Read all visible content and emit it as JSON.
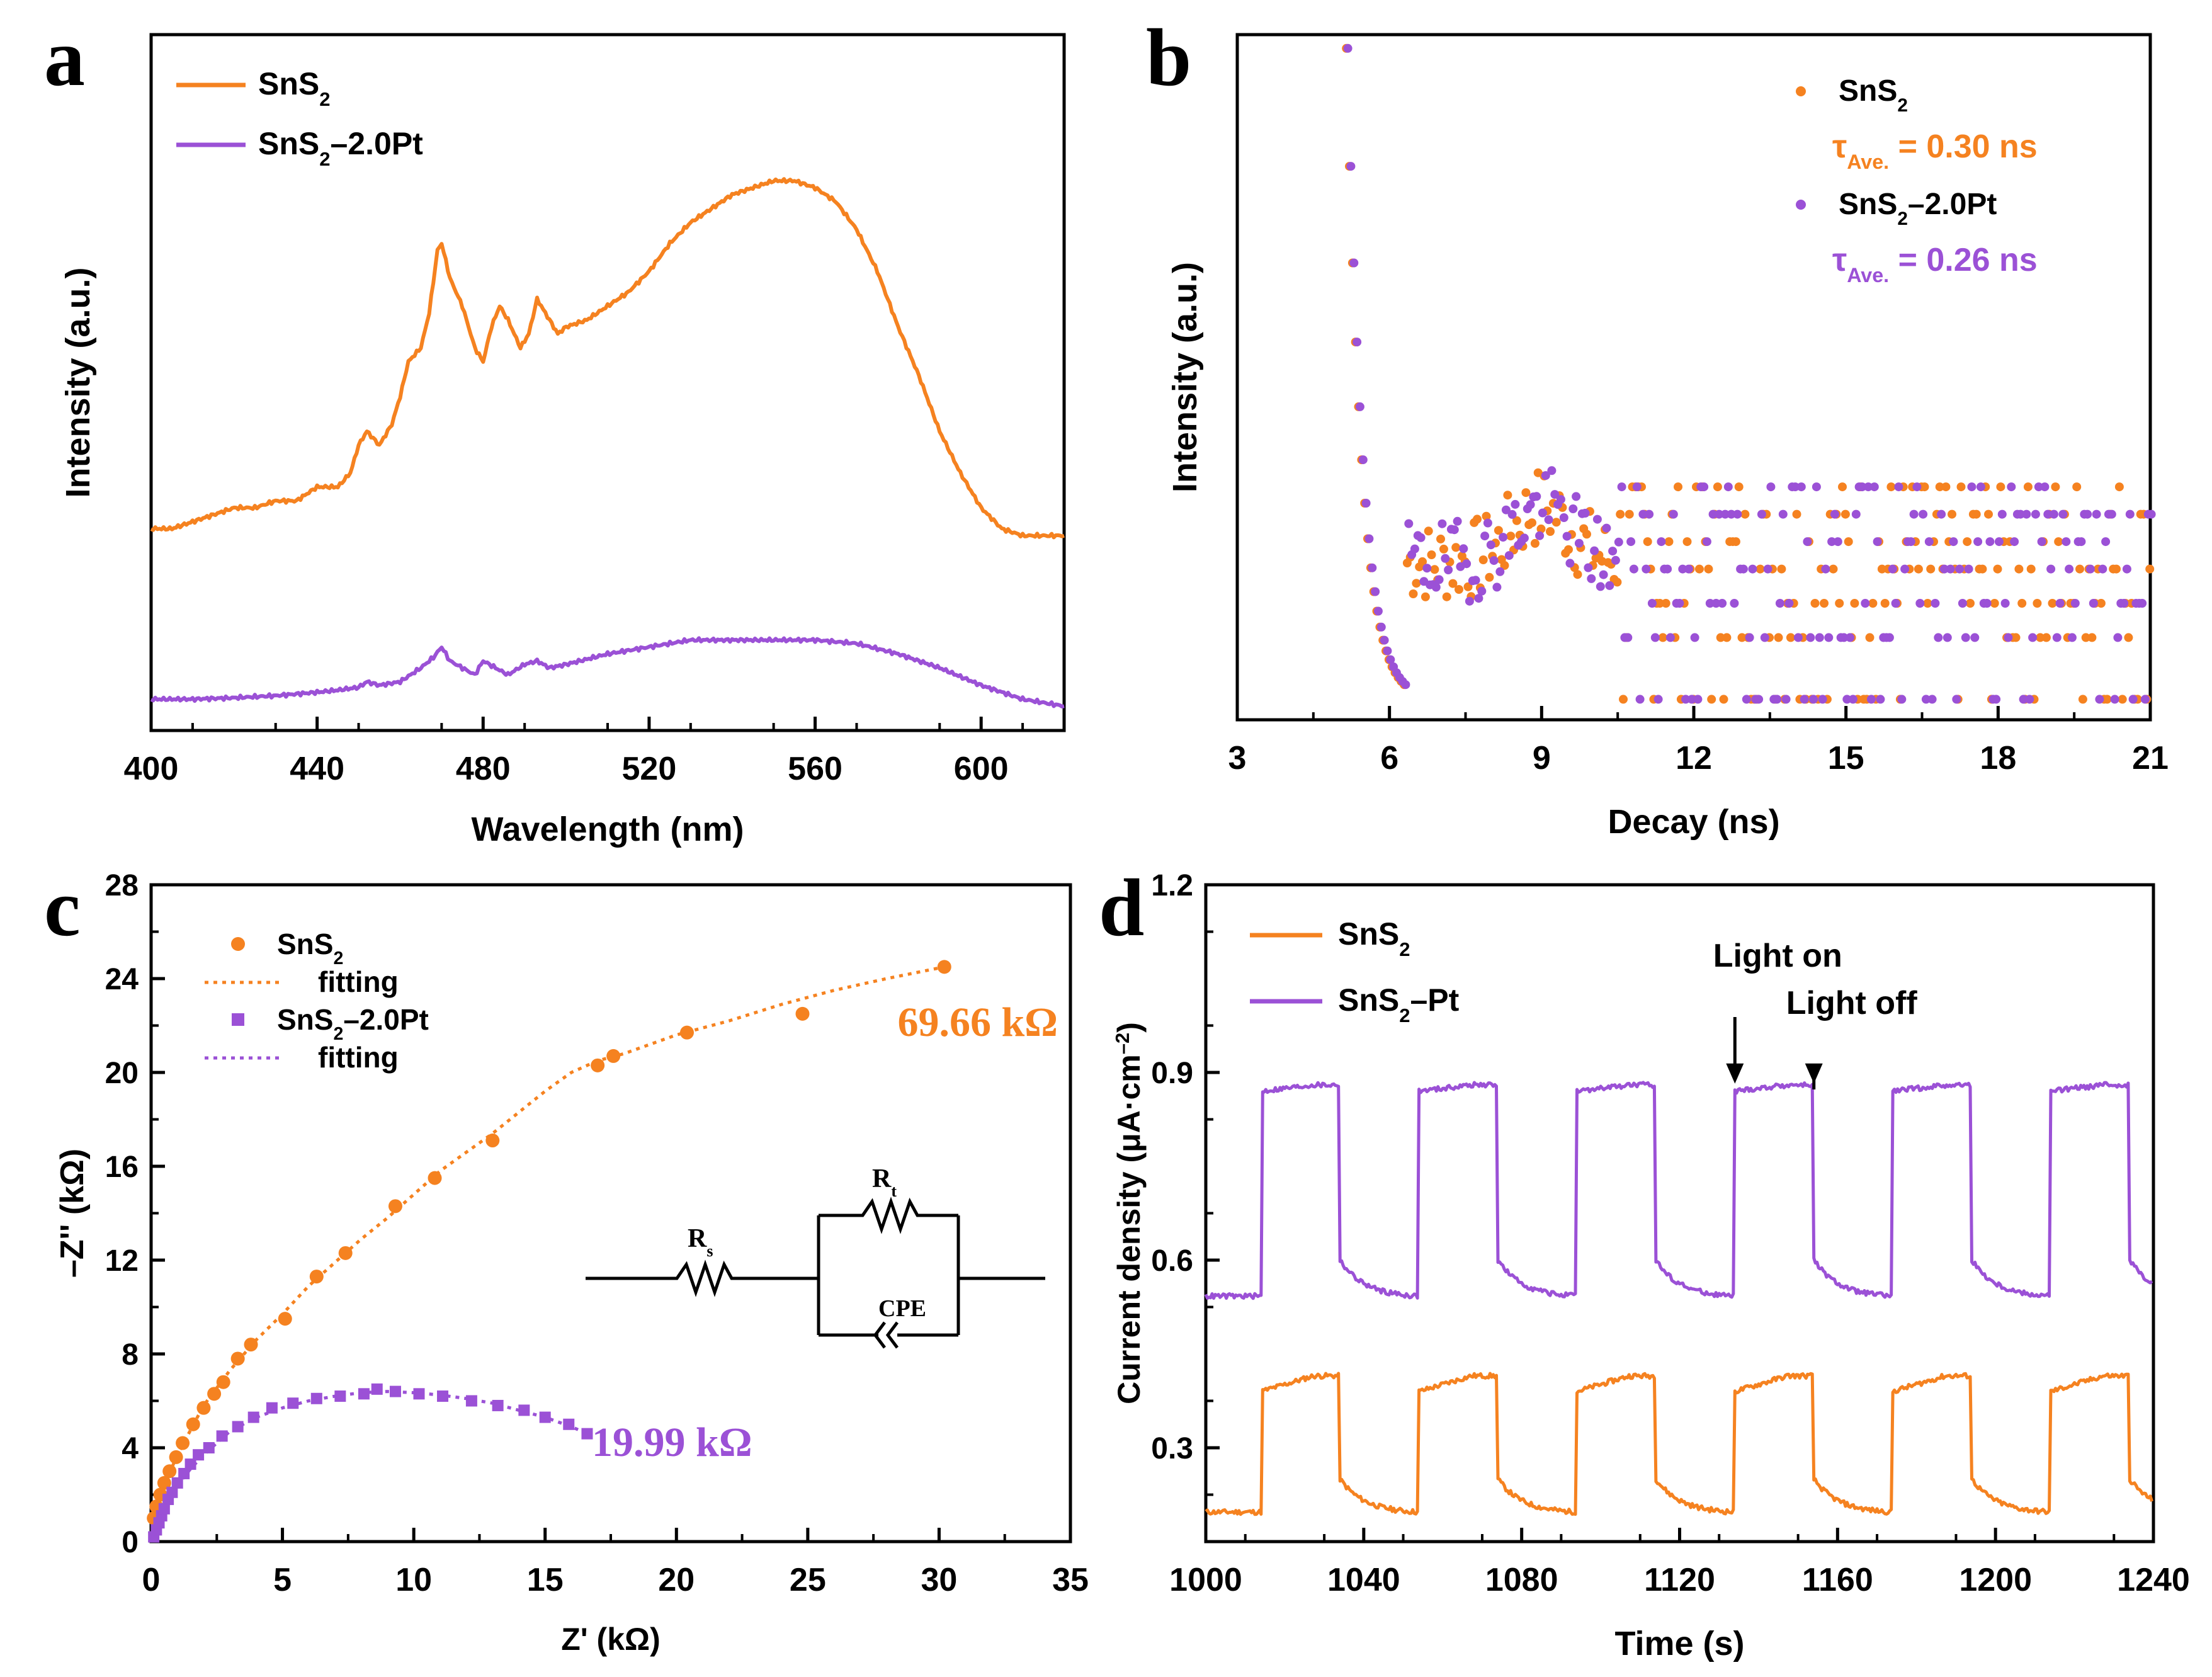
{
  "colors": {
    "orange": "#F58220",
    "purple": "#9B51D6",
    "axis": "#000000"
  },
  "chart_data": [
    {
      "id": "a",
      "panel_label": "a",
      "type": "line",
      "xlabel": "Wavelength (nm)",
      "ylabel": "Intensity (a.u.)",
      "xlim": [
        400,
        620
      ],
      "ylim": [
        0,
        1
      ],
      "xticks": [
        400,
        440,
        480,
        520,
        560,
        600
      ],
      "yticks": [],
      "legend": "top-left",
      "series": [
        {
          "name": "SnS2",
          "label_main": "SnS",
          "label_sub": "2",
          "label_tail": "",
          "color": "#F58220",
          "x": [
            400,
            405,
            410,
            415,
            420,
            425,
            430,
            435,
            440,
            445,
            448,
            450,
            452,
            455,
            458,
            460,
            462,
            465,
            467,
            469,
            470,
            472,
            475,
            478,
            480,
            482,
            484,
            486,
            489,
            491,
            493,
            495,
            498,
            500,
            505,
            510,
            515,
            520,
            525,
            530,
            535,
            540,
            545,
            550,
            555,
            560,
            565,
            570,
            575,
            580,
            585,
            590,
            595,
            600,
            605,
            610,
            615,
            620
          ],
          "y": [
            0.29,
            0.29,
            0.3,
            0.31,
            0.32,
            0.32,
            0.33,
            0.33,
            0.35,
            0.35,
            0.37,
            0.41,
            0.43,
            0.41,
            0.44,
            0.48,
            0.53,
            0.55,
            0.6,
            0.69,
            0.7,
            0.65,
            0.61,
            0.55,
            0.53,
            0.58,
            0.61,
            0.59,
            0.55,
            0.57,
            0.62,
            0.6,
            0.57,
            0.58,
            0.59,
            0.61,
            0.63,
            0.66,
            0.7,
            0.73,
            0.75,
            0.77,
            0.78,
            0.79,
            0.79,
            0.78,
            0.76,
            0.72,
            0.66,
            0.58,
            0.51,
            0.43,
            0.37,
            0.32,
            0.29,
            0.28,
            0.28,
            0.28
          ]
        },
        {
          "name": "SnS2–2.0Pt",
          "label_main": "SnS",
          "label_sub": "2",
          "label_tail": "–2.0Pt",
          "color": "#9B51D6",
          "x": [
            400,
            410,
            420,
            430,
            440,
            445,
            450,
            452,
            455,
            460,
            465,
            468,
            470,
            472,
            475,
            478,
            480,
            483,
            486,
            490,
            493,
            496,
            500,
            510,
            520,
            530,
            540,
            550,
            560,
            570,
            580,
            590,
            600,
            610,
            620
          ],
          "y": [
            0.045,
            0.045,
            0.047,
            0.05,
            0.055,
            0.058,
            0.062,
            0.07,
            0.065,
            0.07,
            0.09,
            0.105,
            0.12,
            0.1,
            0.09,
            0.08,
            0.1,
            0.09,
            0.08,
            0.095,
            0.1,
            0.09,
            0.095,
            0.11,
            0.12,
            0.13,
            0.13,
            0.13,
            0.13,
            0.125,
            0.11,
            0.09,
            0.065,
            0.045,
            0.035
          ]
        }
      ]
    },
    {
      "id": "b",
      "panel_label": "b",
      "type": "scatter",
      "xlabel": "Decay (ns)",
      "ylabel": "Intensity (a.u.)",
      "xlim": [
        3,
        21
      ],
      "ylim": [
        0,
        1
      ],
      "xticks": [
        3,
        6,
        9,
        12,
        15,
        18,
        21
      ],
      "yticks": [],
      "legend": "top-right",
      "annotations": [
        {
          "series": 0,
          "tau_symbol": "τ",
          "tau_sub": "Ave.",
          "tau_value": "= 0.30 ns"
        },
        {
          "series": 1,
          "tau_symbol": "τ",
          "tau_sub": "Ave.",
          "tau_value": "= 0.26 ns"
        }
      ],
      "series": [
        {
          "name": "SnS2",
          "label_main": "SnS",
          "label_sub": "2",
          "label_tail": "",
          "color": "#F58220",
          "seed": 7
        },
        {
          "name": "SnS2–2.0Pt",
          "label_main": "SnS",
          "label_sub": "2",
          "label_tail": "–2.0Pt",
          "color": "#9B51D6",
          "seed": 19
        }
      ],
      "decay_model": {
        "t0": 5.15,
        "tau": 0.3,
        "plateau": 0.3,
        "noise_levels": [
          0.03,
          0.12,
          0.17,
          0.22,
          0.26,
          0.3,
          0.34
        ]
      }
    },
    {
      "id": "c",
      "panel_label": "c",
      "type": "scatter",
      "xlabel": "Z' (kΩ)",
      "ylabel": "–Z'' (kΩ)",
      "xlim": [
        0,
        35
      ],
      "ylim": [
        0,
        28
      ],
      "xticks": [
        0,
        5,
        10,
        15,
        20,
        25,
        30,
        35
      ],
      "yticks": [
        0,
        4,
        8,
        12,
        16,
        20,
        24,
        28
      ],
      "legend": "top-left",
      "series": [
        {
          "name": "SnS2",
          "label_main": "SnS",
          "label_sub": "2",
          "label_tail": "",
          "marker": "circle",
          "color": "#F58220",
          "x": [
            0.1,
            0.2,
            0.35,
            0.5,
            0.7,
            0.95,
            1.2,
            1.6,
            2.0,
            2.4,
            2.75,
            3.3,
            3.8,
            5.1,
            6.3,
            7.4,
            9.3,
            10.8,
            13.0,
            17.0,
            17.6,
            20.4,
            24.8,
            30.2
          ],
          "y": [
            1.0,
            1.5,
            2.0,
            2.5,
            3.0,
            3.6,
            4.2,
            5.0,
            5.7,
            6.3,
            6.8,
            7.8,
            8.4,
            9.5,
            11.3,
            12.3,
            14.3,
            15.5,
            17.1,
            20.3,
            20.7,
            21.7,
            22.5,
            24.5
          ]
        },
        {
          "name": "fitting",
          "type": "fit_line",
          "color": "#F58220",
          "label_tail": "",
          "x": [
            0,
            0.5,
            1,
            2,
            3,
            4,
            5,
            6,
            7,
            8,
            9,
            10,
            11,
            12,
            13,
            14,
            15,
            16,
            17,
            18,
            20,
            22,
            24,
            26,
            28,
            30.2
          ],
          "y": [
            0,
            2.4,
            3.7,
            5.8,
            7.3,
            8.6,
            9.7,
            10.9,
            11.9,
            12.9,
            13.8,
            14.8,
            15.8,
            16.6,
            17.4,
            18.3,
            19.2,
            20.0,
            20.5,
            20.8,
            21.6,
            22.2,
            22.9,
            23.5,
            24.0,
            24.5
          ]
        },
        {
          "name": "SnS2–2.0Pt",
          "label_main": "SnS",
          "label_sub": "2",
          "label_tail": "–2.0Pt",
          "marker": "square",
          "color": "#9B51D6",
          "x": [
            0.1,
            0.2,
            0.3,
            0.4,
            0.5,
            0.65,
            0.8,
            1.0,
            1.25,
            1.5,
            1.8,
            2.2,
            2.7,
            3.3,
            3.9,
            4.6,
            5.4,
            6.3,
            7.2,
            8.1,
            8.6,
            9.3,
            10.2,
            11.1,
            12.2,
            13.2,
            14.2,
            15.0,
            15.9,
            16.6
          ],
          "y": [
            0.2,
            0.5,
            0.8,
            1.1,
            1.4,
            1.8,
            2.1,
            2.5,
            2.9,
            3.3,
            3.7,
            4.0,
            4.5,
            4.9,
            5.3,
            5.7,
            5.9,
            6.1,
            6.2,
            6.3,
            6.5,
            6.4,
            6.3,
            6.2,
            6.0,
            5.8,
            5.6,
            5.3,
            5.0,
            4.6
          ]
        },
        {
          "name": "fitting",
          "type": "fit_line",
          "color": "#9B51D6",
          "label_tail": "",
          "x": [
            0,
            0.3,
            0.6,
            1,
            1.5,
            2,
            3,
            4,
            5,
            6,
            7,
            8,
            9,
            10,
            11,
            12,
            13,
            14,
            15,
            16,
            16.6
          ],
          "y": [
            0,
            0.7,
            1.5,
            2.4,
            3.1,
            3.7,
            4.7,
            5.3,
            5.7,
            6.0,
            6.2,
            6.35,
            6.4,
            6.35,
            6.25,
            6.1,
            5.9,
            5.6,
            5.3,
            4.9,
            4.6
          ]
        }
      ],
      "annotations": [
        {
          "text": "69.66 kΩ",
          "color": "#F58220"
        },
        {
          "text": "19.99 kΩ",
          "color": "#9B51D6"
        }
      ],
      "inset_circuit": {
        "rs_main": "R",
        "rs_sub": "s",
        "rt_main": "R",
        "rt_sub": "t",
        "cpe": "CPE"
      }
    },
    {
      "id": "d",
      "panel_label": "d",
      "type": "line",
      "xlabel": "Time (s)",
      "ylabel_main": "Current density (μA·cm",
      "ylabel_sup": "–2",
      "ylabel_tail": ")",
      "xlim": [
        1000,
        1240
      ],
      "ylim": [
        0.15,
        1.2
      ],
      "xticks": [
        1000,
        1040,
        1080,
        1120,
        1160,
        1200,
        1240
      ],
      "yticks": [
        0.3,
        0.6,
        0.9,
        1.2
      ],
      "legend": "top-left",
      "light_on_times": [
        1014,
        1054,
        1094,
        1134,
        1174,
        1214
      ],
      "light_period_on": 20,
      "annotations": [
        {
          "text": "Light on",
          "x": 1134
        },
        {
          "text": "Light off",
          "x": 1154
        }
      ],
      "series": [
        {
          "name": "SnS2",
          "label_main": "SnS",
          "label_sub": "2",
          "label_tail": "",
          "color": "#F58220",
          "on_start": 0.39,
          "on_end": 0.415,
          "off_start": 0.25,
          "off_end": 0.195
        },
        {
          "name": "SnS2–Pt",
          "label_main": "SnS",
          "label_sub": "2",
          "label_tail": "–Pt",
          "color": "#9B51D6",
          "on_start": 0.87,
          "on_end": 0.88,
          "off_start": 0.6,
          "off_end": 0.54
        }
      ]
    }
  ]
}
